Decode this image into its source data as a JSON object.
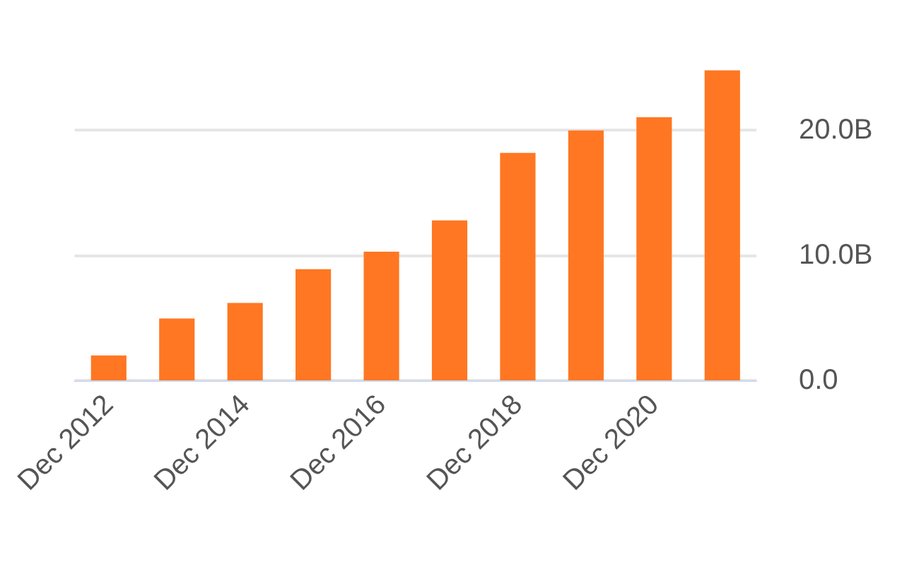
{
  "chart_data": {
    "type": "bar",
    "categories": [
      "Dec 2012",
      null,
      "Dec 2014",
      null,
      "Dec 2016",
      null,
      "Dec 2018",
      null,
      "Dec 2020",
      null
    ],
    "values": [
      2.0,
      4.95,
      6.2,
      8.9,
      10.3,
      12.8,
      18.2,
      20.0,
      21.05,
      24.8
    ],
    "color": "#ff7722",
    "ylim": [
      0,
      25
    ],
    "yticks": [
      {
        "value": 0,
        "label": "0.0"
      },
      {
        "value": 10,
        "label": "10.0B"
      },
      {
        "value": 20,
        "label": "20.0B"
      }
    ],
    "grid": "y"
  }
}
